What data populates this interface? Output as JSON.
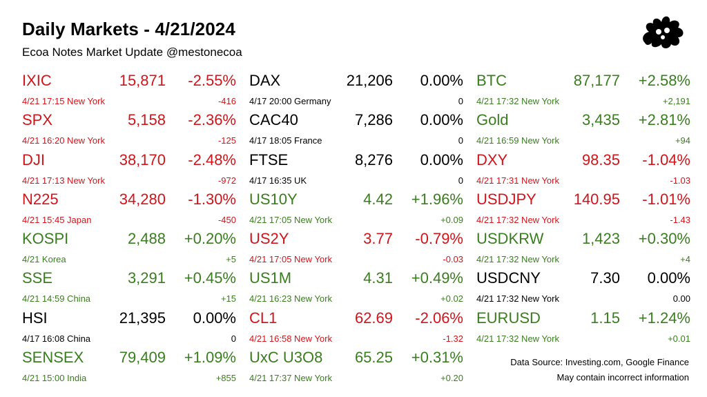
{
  "header": {
    "title": "Daily Markets - 4/21/2024",
    "subtitle": "Ecoa Notes Market Update @mestonecoa"
  },
  "colors": {
    "down": "#d0141b",
    "up": "#3a7d1f",
    "flat": "#000000"
  },
  "logo_icon": "cat-splat-logo",
  "columns": [
    [
      {
        "symbol": "IXIC",
        "price": "15,871",
        "pct": "-2.55%",
        "meta": "4/21 17:15 New York",
        "change": "-416",
        "trend": "down"
      },
      {
        "symbol": "SPX",
        "price": "5,158",
        "pct": "-2.36%",
        "meta": "4/21 16:20 New York",
        "change": "-125",
        "trend": "down"
      },
      {
        "symbol": "DJI",
        "price": "38,170",
        "pct": "-2.48%",
        "meta": "4/21 17:13 New York",
        "change": "-972",
        "trend": "down"
      },
      {
        "symbol": "N225",
        "price": "34,280",
        "pct": "-1.30%",
        "meta": "4/21 15:45 Japan",
        "change": "-450",
        "trend": "down"
      },
      {
        "symbol": "KOSPI",
        "price": "2,488",
        "pct": "+0.20%",
        "meta": "4/21  Korea",
        "change": "+5",
        "trend": "up"
      },
      {
        "symbol": "SSE",
        "price": "3,291",
        "pct": "+0.45%",
        "meta": "4/21 14:59 China",
        "change": "+15",
        "trend": "up"
      },
      {
        "symbol": "HSI",
        "price": "21,395",
        "pct": "0.00%",
        "meta": "4/17 16:08 China",
        "change": "0",
        "trend": "flat"
      },
      {
        "symbol": "SENSEX",
        "price": "79,409",
        "pct": "+1.09%",
        "meta": "4/21 15:00 India",
        "change": "+855",
        "trend": "up"
      }
    ],
    [
      {
        "symbol": "DAX",
        "price": "21,206",
        "pct": "0.00%",
        "meta": "4/17 20:00 Germany",
        "change": "0",
        "trend": "flat"
      },
      {
        "symbol": "CAC40",
        "price": "7,286",
        "pct": "0.00%",
        "meta": "4/17 18:05 France",
        "change": "0",
        "trend": "flat"
      },
      {
        "symbol": "FTSE",
        "price": "8,276",
        "pct": "0.00%",
        "meta": "4/17 16:35 UK",
        "change": "0",
        "trend": "flat"
      },
      {
        "symbol": "US10Y",
        "price": "4.42",
        "pct": "+1.96%",
        "meta": "4/21 17:05 New York",
        "change": "+0.09",
        "trend": "up"
      },
      {
        "symbol": "US2Y",
        "price": "3.77",
        "pct": "-0.79%",
        "meta": "4/21 17:05 New York",
        "change": "-0.03",
        "trend": "down"
      },
      {
        "symbol": "US1M",
        "price": "4.31",
        "pct": "+0.49%",
        "meta": "4/21 16:23 New York",
        "change": "+0.02",
        "trend": "up"
      },
      {
        "symbol": "CL1",
        "price": "62.69",
        "pct": "-2.06%",
        "meta": "4/21 16:58 New York",
        "change": "-1.32",
        "trend": "down"
      },
      {
        "symbol": "UxC U3O8",
        "price": "65.25",
        "pct": "+0.31%",
        "meta": "4/21 17:37 New York",
        "change": "+0.20",
        "trend": "up"
      }
    ],
    [
      {
        "symbol": "BTC",
        "price": "87,177",
        "pct": "+2.58%",
        "meta": "4/21 17:32 New York",
        "change": "+2,191",
        "trend": "up"
      },
      {
        "symbol": "Gold",
        "price": "3,435",
        "pct": "+2.81%",
        "meta": "4/21 16:59 New York",
        "change": "+94",
        "trend": "up"
      },
      {
        "symbol": "DXY",
        "price": "98.35",
        "pct": "-1.04%",
        "meta": "4/21 17:31 New York",
        "change": "-1.03",
        "trend": "down"
      },
      {
        "symbol": "USDJPY",
        "price": "140.95",
        "pct": "-1.01%",
        "meta": "4/21 17:32 New York",
        "change": "-1.43",
        "trend": "down"
      },
      {
        "symbol": "USDKRW",
        "price": "1,423",
        "pct": "+0.30%",
        "meta": "4/21 17:32 New York",
        "change": "+4",
        "trend": "up"
      },
      {
        "symbol": "USDCNY",
        "price": "7.30",
        "pct": "0.00%",
        "meta": "4/21 17:32 New York",
        "change": "0.00",
        "trend": "flat"
      },
      {
        "symbol": "EURUSD",
        "price": "1.15",
        "pct": "+1.24%",
        "meta": "4/21 17:32 New York",
        "change": "+0.01",
        "trend": "up"
      }
    ]
  ],
  "footer": {
    "source": "Data Source: Investing.com, Google Finance",
    "disclaimer": "May contain incorrect information"
  }
}
